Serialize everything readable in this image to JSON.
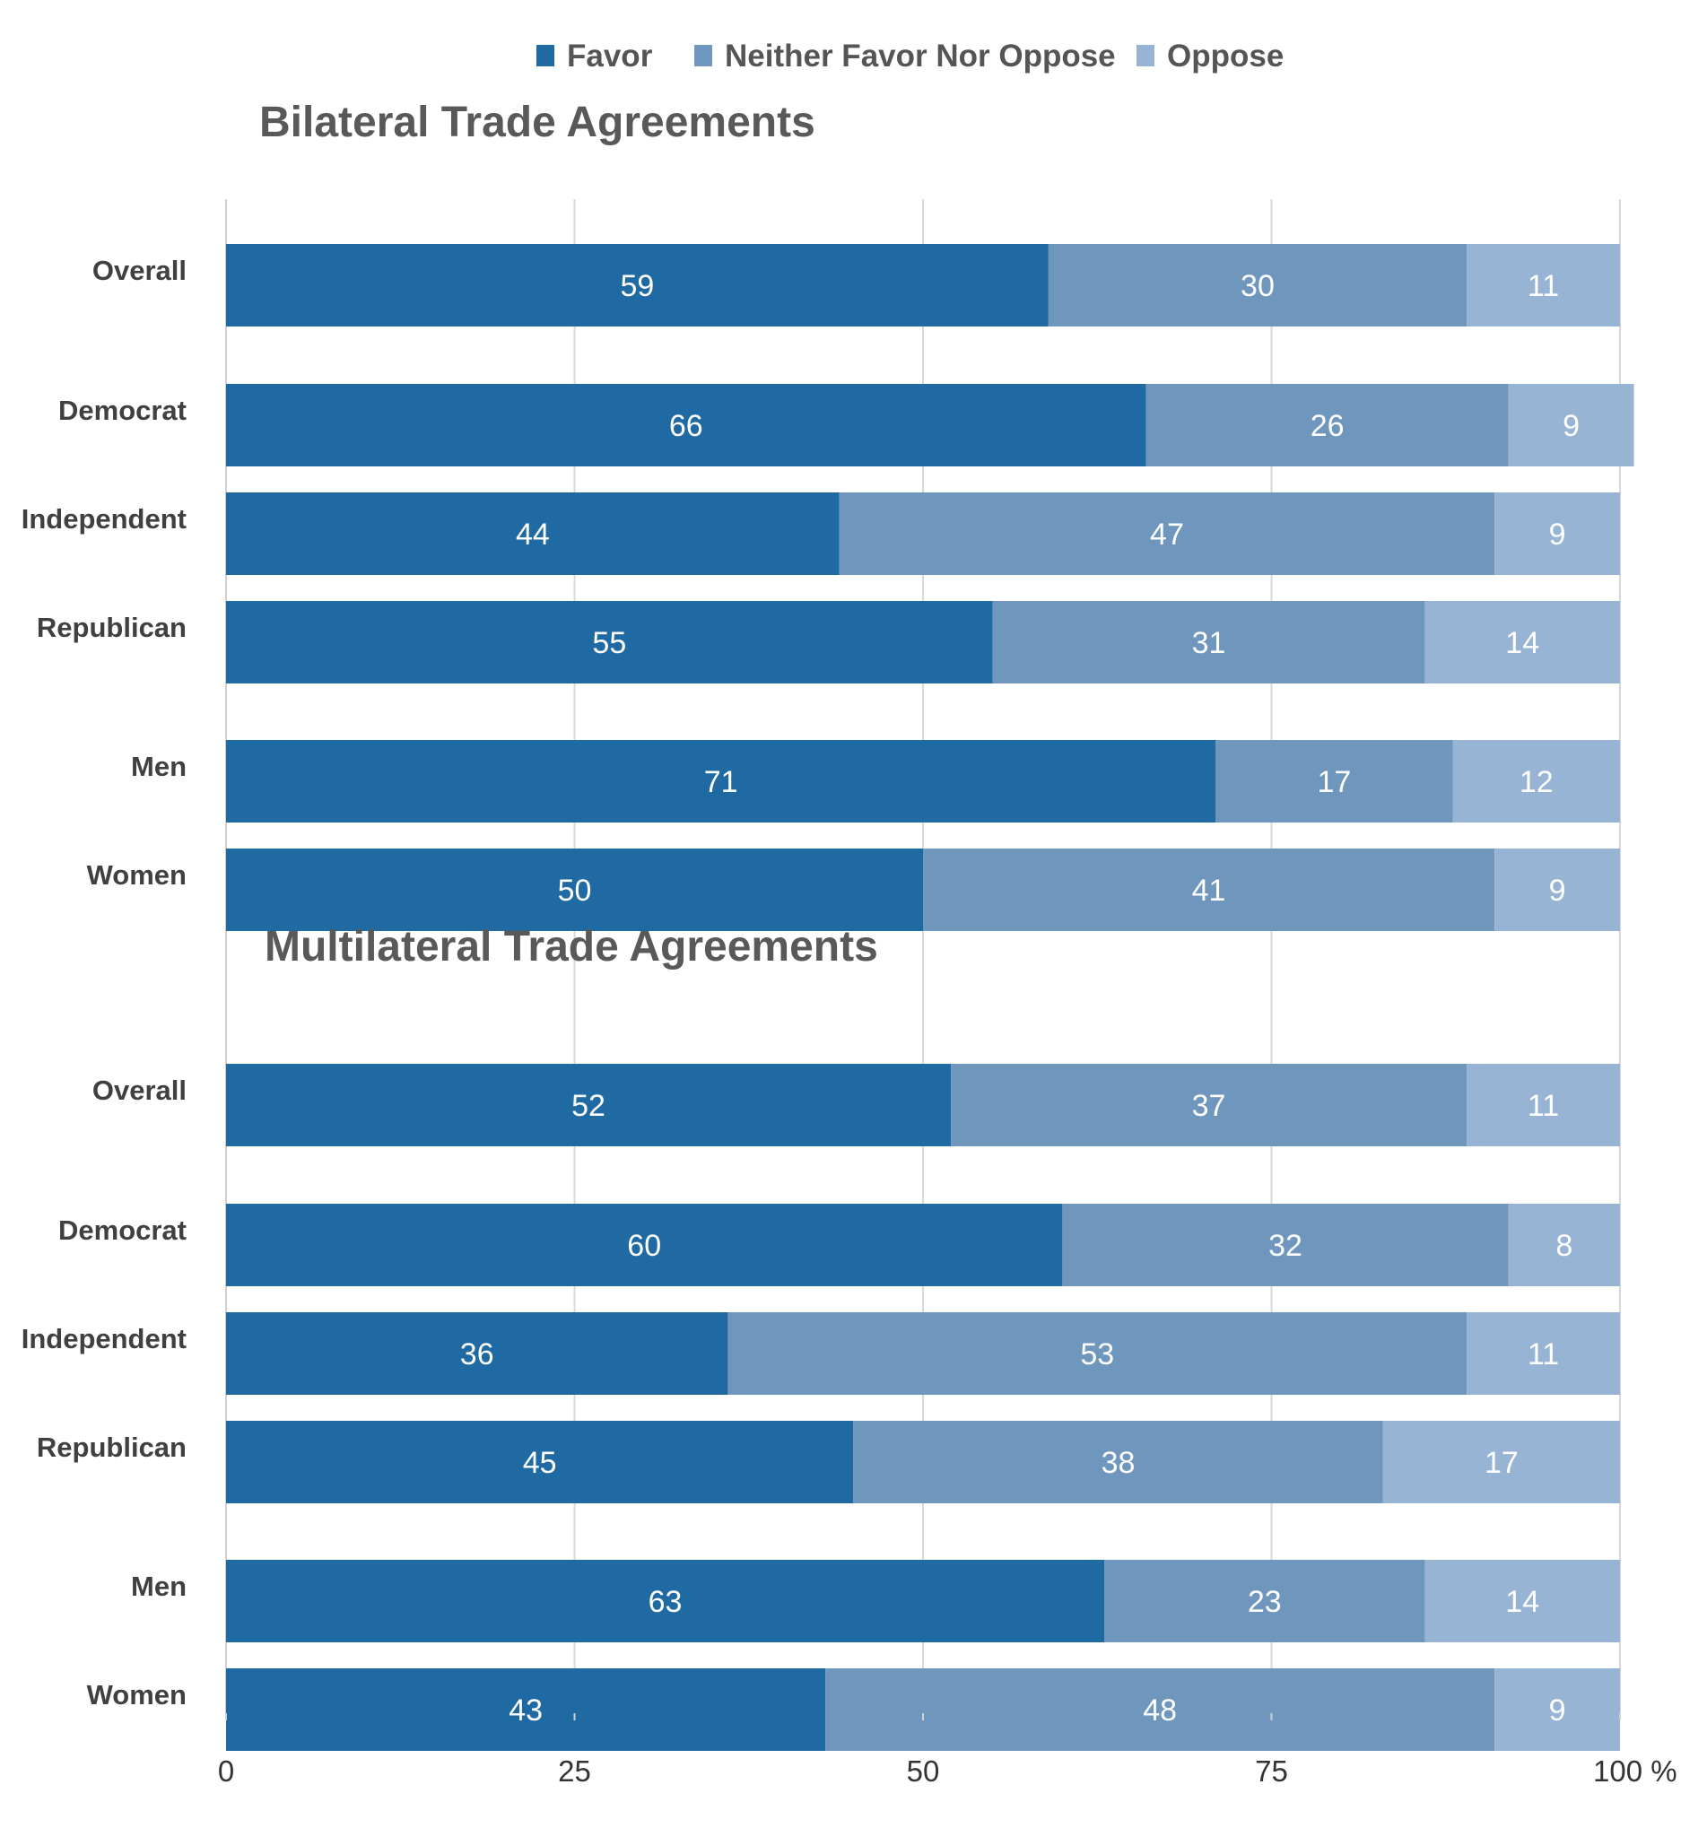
{
  "chart_data": {
    "type": "bar",
    "orientation": "horizontal",
    "stacked": true,
    "legend": {
      "position": "top-center",
      "entries": [
        "Favor",
        "Neither Favor Nor Oppose",
        "Oppose"
      ]
    },
    "colors": {
      "Favor": "#206aa4",
      "Neither Favor Nor Oppose": "#6f96bd",
      "Oppose": "#97b4d4"
    },
    "x_axis": {
      "range": [
        0,
        100
      ],
      "ticks": [
        {
          "value": 0,
          "label": "0"
        },
        {
          "value": 25,
          "label": "25"
        },
        {
          "value": 50,
          "label": "50"
        },
        {
          "value": 75,
          "label": "75"
        },
        {
          "value": 100,
          "label": "100 %"
        }
      ],
      "grid": true
    },
    "panels": [
      {
        "title": "Bilateral Trade Agreements",
        "categories": [
          "Overall",
          "Democrat",
          "Independent",
          "Republican",
          "Men",
          "Women"
        ],
        "series": [
          {
            "name": "Favor",
            "values": [
              59,
              66,
              44,
              55,
              71,
              50
            ]
          },
          {
            "name": "Neither Favor Nor Oppose",
            "values": [
              30,
              26,
              47,
              31,
              17,
              41
            ]
          },
          {
            "name": "Oppose",
            "values": [
              11,
              9,
              9,
              14,
              12,
              9
            ]
          }
        ]
      },
      {
        "title": "Multilateral Trade Agreements",
        "categories": [
          "Overall",
          "Democrat",
          "Independent",
          "Republican",
          "Men",
          "Women"
        ],
        "series": [
          {
            "name": "Favor",
            "values": [
              52,
              60,
              36,
              45,
              63,
              43
            ]
          },
          {
            "name": "Neither Favor Nor Oppose",
            "values": [
              37,
              32,
              53,
              38,
              23,
              48
            ]
          },
          {
            "name": "Oppose",
            "values": [
              11,
              8,
              11,
              17,
              14,
              9
            ]
          }
        ]
      }
    ]
  }
}
